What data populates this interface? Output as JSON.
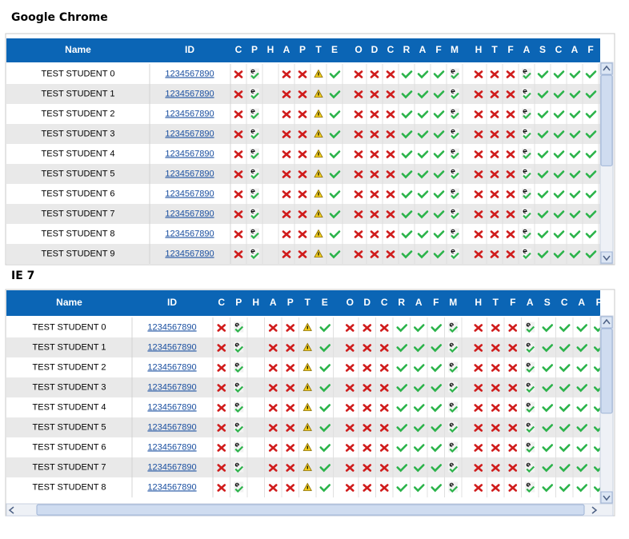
{
  "chrome": {
    "title": "Google Chrome",
    "header": {
      "name": "Name",
      "id": "ID",
      "letters": [
        [
          "C",
          "P",
          "H",
          "A",
          "P",
          "T",
          "E"
        ],
        [
          "O",
          "D",
          "C",
          "R",
          "A",
          "F",
          "M"
        ],
        [
          "H",
          "T",
          "F",
          "A",
          "S",
          "C",
          "A",
          "F"
        ]
      ]
    },
    "rows": [
      {
        "name": "TEST STUDENT 0",
        "id": "1234567890"
      },
      {
        "name": "TEST STUDENT 1",
        "id": "1234567890"
      },
      {
        "name": "TEST STUDENT 2",
        "id": "1234567890"
      },
      {
        "name": "TEST STUDENT 3",
        "id": "1234567890"
      },
      {
        "name": "TEST STUDENT 4",
        "id": "1234567890"
      },
      {
        "name": "TEST STUDENT 5",
        "id": "1234567890"
      },
      {
        "name": "TEST STUDENT 6",
        "id": "1234567890"
      },
      {
        "name": "TEST STUDENT 7",
        "id": "1234567890"
      },
      {
        "name": "TEST STUDENT 8",
        "id": "1234567890"
      },
      {
        "name": "TEST STUDENT 9",
        "id": "1234567890"
      }
    ]
  },
  "ie": {
    "title": "IE 7",
    "header": {
      "name": "Name",
      "id": "ID",
      "letters": [
        [
          "C",
          "P",
          "H",
          "A",
          "P",
          "T",
          "E"
        ],
        [
          "O",
          "D",
          "C",
          "R",
          "A",
          "F",
          "M"
        ],
        [
          "H",
          "T",
          "F",
          "A",
          "S",
          "C",
          "A",
          "F"
        ]
      ]
    },
    "rows": [
      {
        "name": "TEST STUDENT 0",
        "id": "1234567890"
      },
      {
        "name": "TEST STUDENT 1",
        "id": "1234567890"
      },
      {
        "name": "TEST STUDENT 2",
        "id": "1234567890"
      },
      {
        "name": "TEST STUDENT 3",
        "id": "1234567890"
      },
      {
        "name": "TEST STUDENT 4",
        "id": "1234567890"
      },
      {
        "name": "TEST STUDENT 5",
        "id": "1234567890"
      },
      {
        "name": "TEST STUDENT 6",
        "id": "1234567890"
      },
      {
        "name": "TEST STUDENT 7",
        "id": "1234567890"
      },
      {
        "name": "TEST STUDENT 8",
        "id": "1234567890"
      }
    ]
  }
}
